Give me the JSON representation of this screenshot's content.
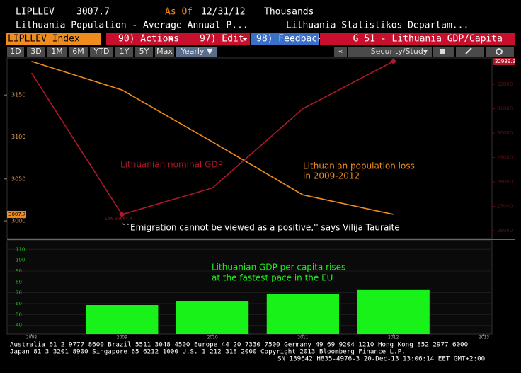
{
  "header": {
    "ticker": "LIPLLEV",
    "as_of_label": "As Of",
    "as_of": "12/31/12",
    "units": "Thousands",
    "title": "Lithuania Population - Average Annual P...",
    "source": "Lithuania Statistikos Departam..."
  },
  "toolbar": {
    "security": "LIPLLEV Index",
    "actions": "90) Actions",
    "edit": "97) Edit",
    "feedback": "98) Feedback",
    "function": "G 51 - Lithuania GDP/Capita",
    "ranges": [
      "1D",
      "3D",
      "1M",
      "6M",
      "YTD",
      "1Y",
      "5Y",
      "Max",
      "Yearly ▼"
    ],
    "back": "«",
    "study": "Security/Study"
  },
  "chart_data": [
    {
      "type": "line",
      "x": [
        2008,
        2009,
        2010,
        2011,
        2012,
        2013
      ],
      "xlim": [
        2007.73,
        2013.09
      ],
      "ylim": [
        2979,
        3194
      ],
      "yticks": [
        3000,
        3050,
        3100,
        3150
      ],
      "y2lim": [
        25680,
        33076
      ],
      "y2ticks": [
        26000,
        27000,
        28000,
        29000,
        30000,
        31000,
        32000
      ],
      "series": [
        {
          "name": "Lithuanian population loss in 2009-2012",
          "color": "#f08c1e",
          "values": [
            3190,
            3156,
            3094,
            3031,
            3007.7,
            null
          ]
        },
        {
          "name": "Lithuanian nominal GDP",
          "color": "#b0182a",
          "axis": "y2",
          "values": [
            32465,
            26664.4,
            27755,
            31000,
            32939.9,
            null
          ]
        }
      ],
      "annotations": {
        "gdp": "Lithuanian nominal GDP",
        "population_1": "Lithuanian population loss",
        "population_2": "in 2009-2012",
        "quote": "``Emigration cannot be viewed as a positive,'' says Vilija Tauraite",
        "low": "Low 26664.4"
      }
    },
    {
      "type": "bar",
      "x": [
        2009,
        2010,
        2011,
        2012
      ],
      "values": [
        58.7,
        62.6,
        68.5,
        72.5
      ],
      "color": "#19f219",
      "xlim": [
        2007.73,
        2013.09
      ],
      "xticks": [
        2008,
        2009,
        2010,
        2011,
        2012,
        2013
      ],
      "ylim": [
        32,
        118
      ],
      "yticks": [
        40,
        50,
        60,
        70,
        80,
        90,
        100,
        110
      ],
      "annotations": [
        "Lithuanian GDP per capita rises",
        "at the fastest pace in the EU"
      ]
    }
  ],
  "footer": [
    "Australia 61 2 9777 8600 Brazil 5511 3048 4500 Europe 44 20 7330 7500 Germany 49 69 9204 1210 Hong Kong 852 2977 6000",
    "Japan 81 3 3201 8900      Singapore 65 6212 1000      U.S. 1 212 318 2000      Copyright 2013 Bloomberg Finance L.P.",
    "SN 139642 H835-4976-3 20-Dec-13 13:06:14 EET  GMT+2:00"
  ]
}
